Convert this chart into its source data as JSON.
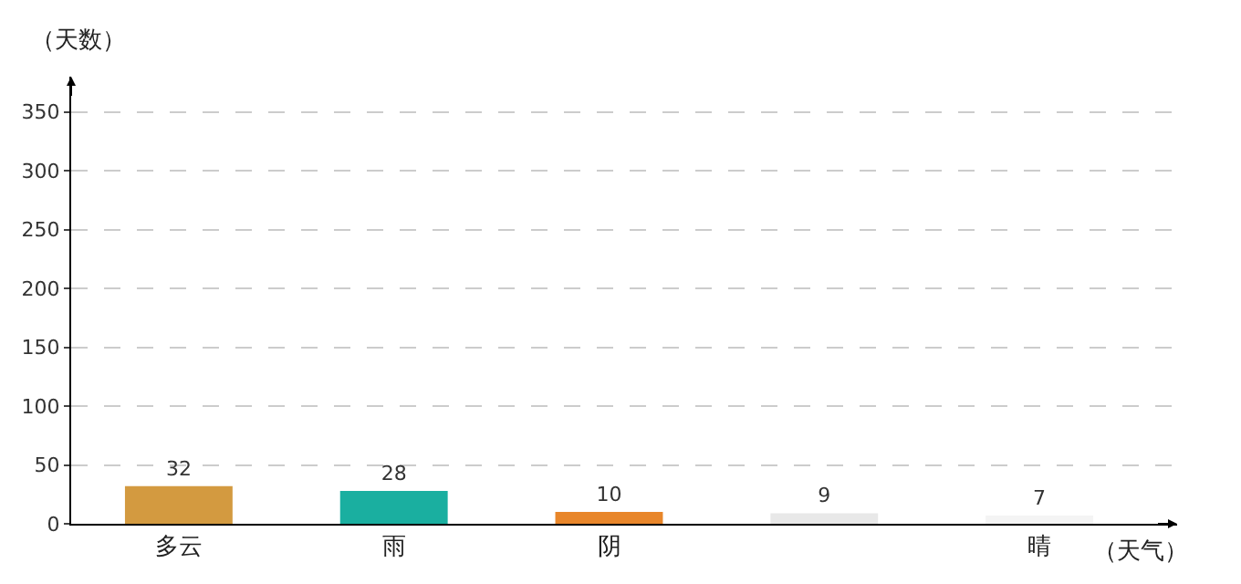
{
  "chart_data": {
    "type": "bar",
    "xlabel": "（天气）",
    "ylabel": "（天数）",
    "categories": [
      "多云",
      "雨",
      "阴",
      null,
      "晴"
    ],
    "values": [
      32,
      28,
      10,
      9,
      7
    ],
    "colors": [
      "#d39a40",
      "#1aafa0",
      "#e8862a",
      "#e8e8e8",
      "#f4f4f4"
    ],
    "ylim": [
      0,
      380
    ],
    "yticks": [
      0,
      50,
      100,
      150,
      200,
      250,
      300,
      350
    ],
    "grid": "y",
    "data_labels": true
  }
}
